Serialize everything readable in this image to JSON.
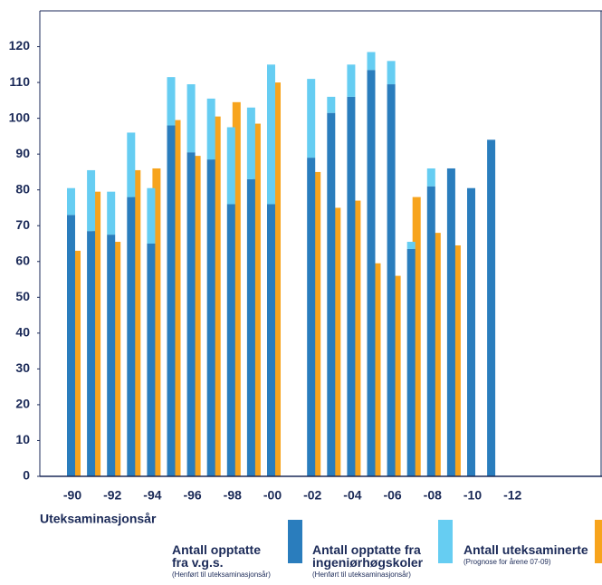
{
  "chart_data": {
    "type": "bar",
    "stacked": true,
    "x_label": "Uteksaminasjonsår",
    "categories": [
      "-90",
      null,
      "-92",
      null,
      "-94",
      null,
      "-96",
      null,
      "-98",
      null,
      "-00",
      null,
      "-02",
      null,
      "-04",
      null,
      "-06",
      null,
      "-08",
      null,
      "-10",
      null,
      "-12"
    ],
    "series": [
      {
        "name": "Antall opptatte fra v.g.s.",
        "note": "(Henført til uteksaminasjonsår)",
        "color": "#2a7dbd",
        "stack": "a",
        "values": [
          73,
          68.5,
          67.5,
          78,
          65,
          98,
          90.5,
          88.5,
          76,
          83,
          76,
          null,
          89,
          101.5,
          106,
          113.5,
          109.5,
          63.5,
          81,
          86,
          80.5,
          94,
          null
        ]
      },
      {
        "name": "Antall opptatte fra ingeniørhøgskoler",
        "note": "(Henført til uteksaminasjonsår)",
        "color": "#66cdf2",
        "stack": "a",
        "values": [
          7.5,
          17,
          12,
          18,
          15.5,
          13.5,
          19,
          17,
          21.5,
          20,
          39,
          null,
          22,
          4.5,
          9,
          5,
          6.5,
          2,
          5,
          null,
          null,
          null,
          null
        ]
      },
      {
        "name": "Antall uteksaminerte",
        "note": "(Prognose for årene 07-09)",
        "color": "#f7a41d",
        "stack": "b",
        "values": [
          63,
          79.5,
          65.5,
          85.5,
          86,
          99.5,
          89.5,
          100.5,
          104.5,
          98.5,
          110,
          null,
          85,
          75,
          77,
          59.5,
          56,
          78,
          68,
          64.5,
          null,
          null,
          null
        ]
      }
    ],
    "ylim": [
      0,
      130
    ],
    "yticks": [
      0,
      10,
      20,
      30,
      40,
      50,
      60,
      70,
      80,
      90,
      100,
      110,
      120
    ]
  }
}
